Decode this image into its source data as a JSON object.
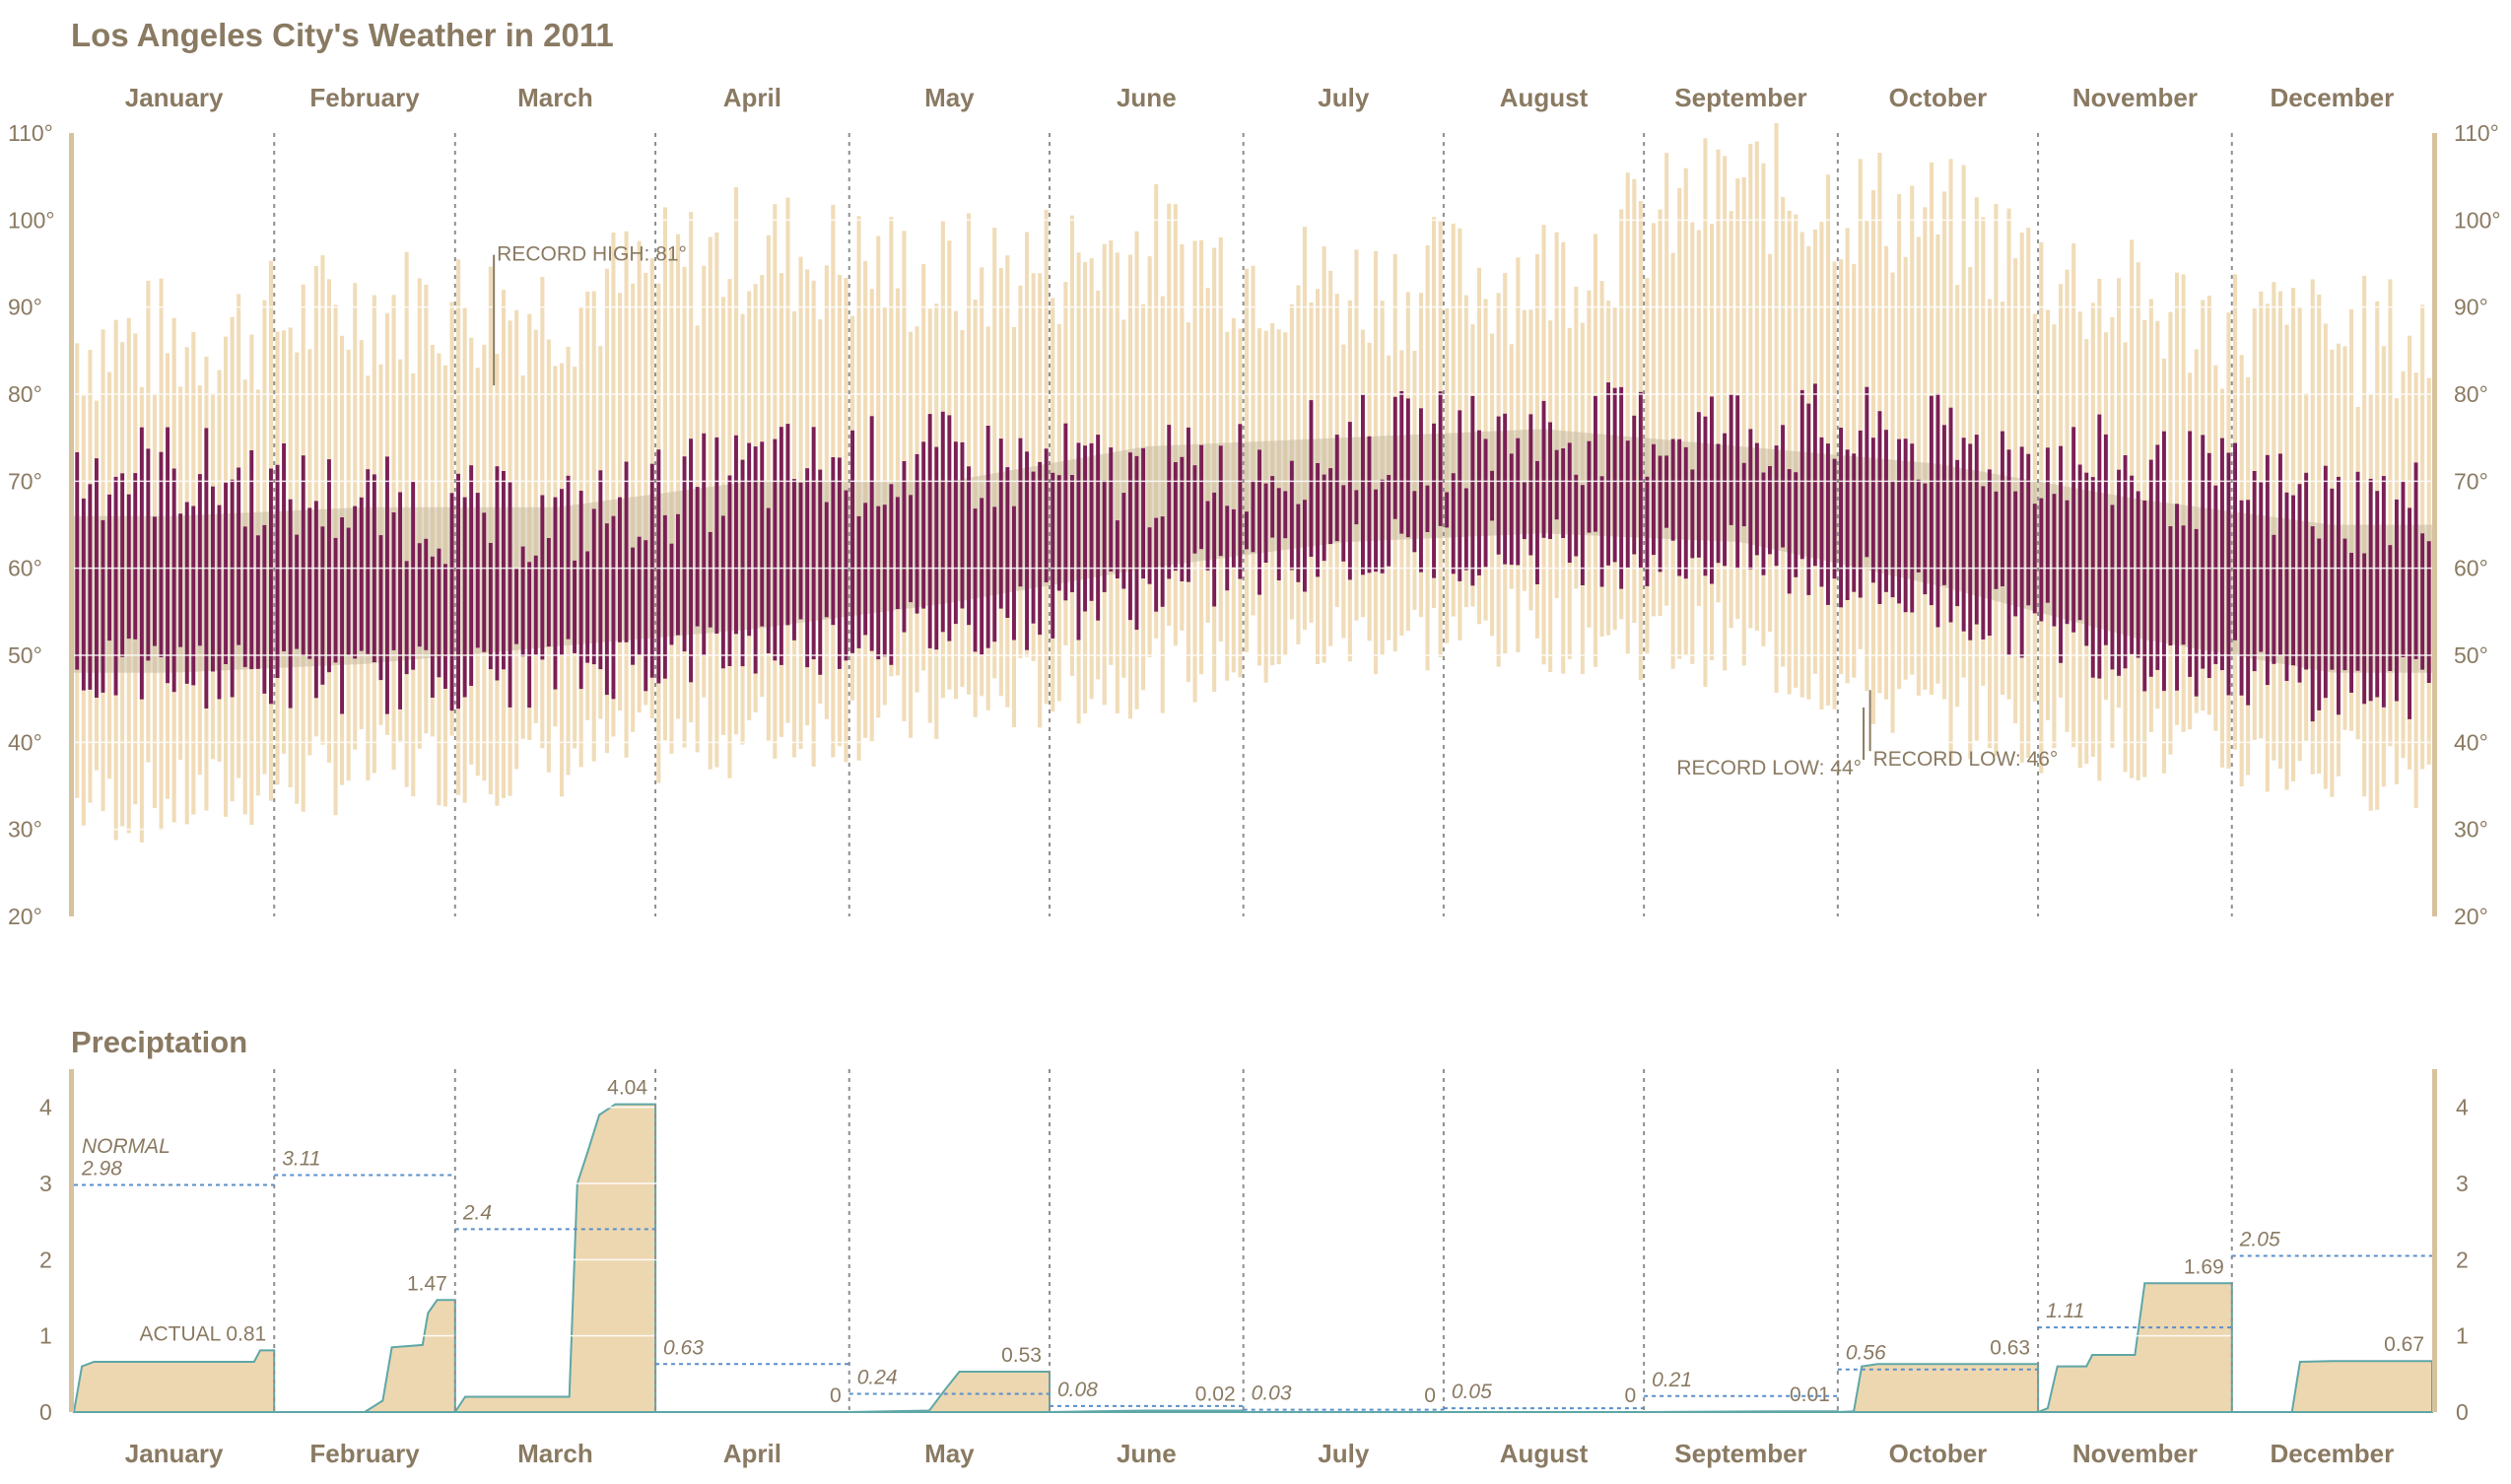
{
  "chart_data": [
    {
      "type": "bar",
      "title": "Los Angeles City's Weather in 2011",
      "months": [
        "January",
        "February",
        "March",
        "April",
        "May",
        "June",
        "July",
        "August",
        "September",
        "October",
        "November",
        "December"
      ],
      "days_in_month": [
        31,
        28,
        31,
        30,
        31,
        30,
        31,
        31,
        30,
        31,
        30,
        31
      ],
      "ylim": [
        20,
        110
      ],
      "yticks": [
        20,
        30,
        40,
        50,
        60,
        70,
        80,
        90,
        100,
        110
      ],
      "tick_suffix": "°",
      "colors": {
        "actual": "#7b1f54",
        "record": "#f0dcb8",
        "normal": "#c9bba0",
        "text": "#8a7a62",
        "axis": "#d6c29c"
      },
      "series": [
        {
          "name": "",
          "kind": "record_range",
          "monthly_high_profile": [
            86,
            90,
            90,
            97,
            93,
            97,
            92,
            94,
            104,
            100,
            90,
            86
          ],
          "monthly_low_profile": [
            33,
            37,
            38,
            41,
            44,
            48,
            52,
            53,
            51,
            43,
            40,
            37
          ]
        },
        {
          "name": "",
          "kind": "normal_range",
          "monthly_high_profile": [
            66,
            67,
            67,
            70,
            70,
            74,
            75,
            76,
            74,
            72,
            68,
            65
          ],
          "monthly_low_profile": [
            48,
            49,
            51,
            53,
            56,
            60,
            63,
            64,
            63,
            58,
            52,
            48
          ]
        },
        {
          "name": "",
          "kind": "actual_range",
          "monthly_high_profile": [
            70,
            66,
            64,
            70,
            71,
            69,
            73,
            74,
            75,
            73,
            70,
            66
          ],
          "monthly_low_profile": [
            48,
            47,
            48,
            51,
            53,
            57,
            62,
            62,
            61,
            56,
            50,
            46
          ]
        }
      ],
      "annotations": [
        {
          "text": "RECORD HIGH: 81°",
          "month": 3,
          "day": 6,
          "value": 81
        },
        {
          "text": "RECORD LOW: 44°",
          "month": 10,
          "day": 4,
          "value": 44
        },
        {
          "text": "RECORD LOW: 46°",
          "month": 10,
          "day": 5,
          "value": 46
        }
      ]
    },
    {
      "type": "area",
      "title": "Preciptation",
      "ylim": [
        0,
        4.5
      ],
      "yticks": [
        0,
        1,
        2,
        3,
        4
      ],
      "months": [
        "January",
        "February",
        "March",
        "April",
        "May",
        "June",
        "July",
        "August",
        "September",
        "October",
        "November",
        "December"
      ],
      "series": [
        {
          "name": "ACTUAL",
          "kind": "cumulative_monthly_total",
          "values": [
            0.81,
            1.47,
            4.04,
            0,
            0.53,
            0.02,
            0,
            0,
            0.01,
            0.63,
            1.69,
            0.67
          ],
          "labels": [
            "ACTUAL 0.81",
            "1.47",
            "4.04",
            "0",
            "0.53",
            "0.02",
            "0",
            "0",
            "0.01",
            "0.63",
            "1.69",
            "0.67"
          ]
        },
        {
          "name": "NORMAL",
          "kind": "monthly_normal",
          "values": [
            2.98,
            3.11,
            2.4,
            0.63,
            0.24,
            0.08,
            0.03,
            0.05,
            0.21,
            0.56,
            1.11,
            2.05
          ],
          "labels": [
            "2.98",
            "3.11",
            "2.4",
            "0.63",
            "0.24",
            "0.08",
            "0.03",
            "0.05",
            "0.21",
            "0.56",
            "1.11",
            "2.05"
          ]
        }
      ],
      "legend_label": "NORMAL",
      "colors": {
        "fill": "#edd7b0",
        "line": "#5ea7a7",
        "normal": "#5b8fc9"
      }
    }
  ]
}
